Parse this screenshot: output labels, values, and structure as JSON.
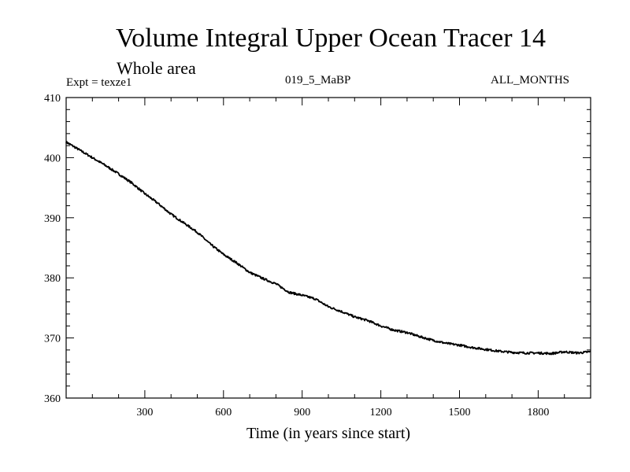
{
  "chart_data": {
    "type": "line",
    "title": "Volume Integral Upper Ocean Tracer 14",
    "subtitle": "Whole area",
    "experiment_label": "Expt = texze1",
    "run_label": "019_5_MaBP",
    "period_label": "ALL_MONTHS",
    "xlabel": "Time (in years since start)",
    "ylabel": "",
    "xlim": [
      0,
      2000
    ],
    "ylim": [
      360,
      410
    ],
    "xticks": [
      300,
      600,
      900,
      1200,
      1500,
      1800
    ],
    "xtick_labels": [
      "300",
      "600",
      "900",
      "1200",
      "1500",
      "1800"
    ],
    "yticks": [
      360,
      370,
      380,
      390,
      400,
      410
    ],
    "ytick_labels": [
      "360",
      "370",
      "380",
      "390",
      "400",
      "410"
    ],
    "grid": false,
    "series": [
      {
        "name": "Volume Integral Upper Ocean Tracer 14",
        "color": "#000000",
        "x": [
          0,
          50,
          100,
          150,
          200,
          250,
          300,
          350,
          400,
          450,
          500,
          550,
          600,
          650,
          700,
          750,
          800,
          850,
          900,
          950,
          1000,
          1050,
          1100,
          1150,
          1200,
          1250,
          1300,
          1350,
          1400,
          1450,
          1500,
          1550,
          1600,
          1650,
          1700,
          1750,
          1800,
          1850,
          1900,
          1950,
          2000
        ],
        "y": [
          402.6,
          401.3,
          400.0,
          398.7,
          397.3,
          395.8,
          394.0,
          392.4,
          390.6,
          389.1,
          387.6,
          385.6,
          383.9,
          382.5,
          380.9,
          379.9,
          379.0,
          377.6,
          377.1,
          376.5,
          375.2,
          374.4,
          373.5,
          372.9,
          372.0,
          371.3,
          370.9,
          370.2,
          369.6,
          369.1,
          368.8,
          368.4,
          368.1,
          367.8,
          367.6,
          367.5,
          367.5,
          367.4,
          367.7,
          367.5,
          367.7
        ]
      }
    ]
  }
}
